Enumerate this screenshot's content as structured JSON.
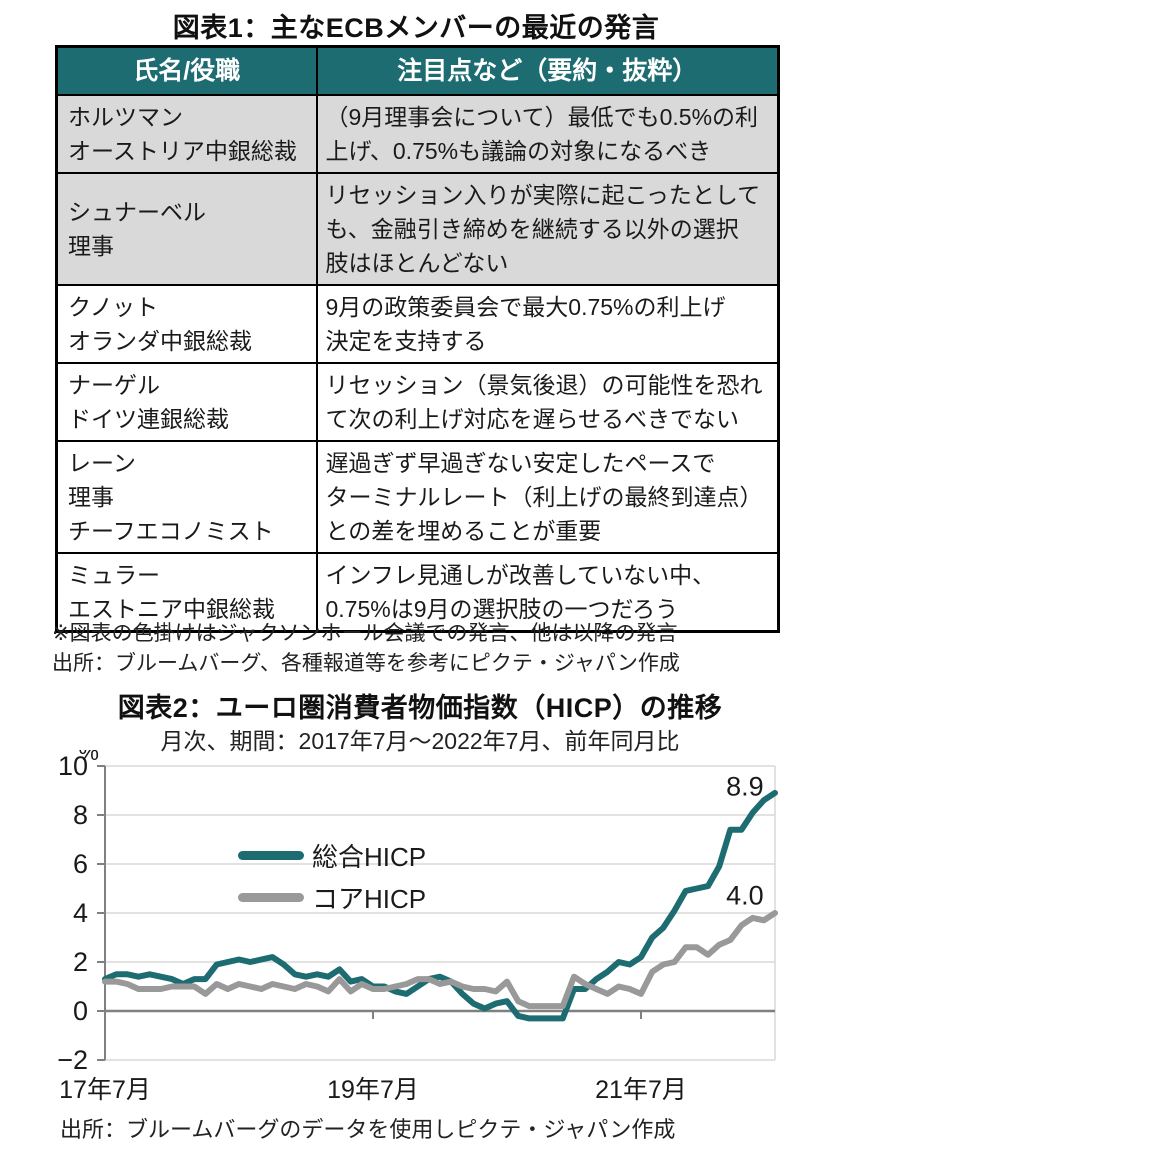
{
  "figure1": {
    "title": "図表1：主なECBメンバーの最近の発言",
    "columns": [
      "氏名/役職",
      "注目点など（要約・抜粋）"
    ],
    "rows": [
      {
        "name": "ホルツマン\nオーストリア中銀総裁",
        "comment": "（9月理事会について）最低でも0.5%の利\n上げ、0.75%も議論の対象になるべき",
        "highlighted": true
      },
      {
        "name": "シュナーベル\n理事",
        "comment": "リセッション入りが実際に起こったとして\nも、金融引き締めを継続する以外の選択\n肢はほとんどない",
        "highlighted": true
      },
      {
        "name": "クノット\nオランダ中銀総裁",
        "comment": "9月の政策委員会で最大0.75%の利上げ\n決定を支持する",
        "highlighted": false
      },
      {
        "name": "ナーゲル\nドイツ連銀総裁",
        "comment": "リセッション（景気後退）の可能性を恐れ\nて次の利上げ対応を遅らせるべきでない",
        "highlighted": false
      },
      {
        "name": "レーン\n理事\nチーフエコノミスト",
        "comment": "遅過ぎず早過ぎない安定したペースで\nターミナルレート（利上げの最終到達点）\nとの差を埋めることが重要",
        "highlighted": false
      },
      {
        "name": "ミュラー\nエストニア中銀総裁",
        "comment": "インフレ見通しが改善していない中、\n0.75%は9月の選択肢の一つだろう",
        "highlighted": false
      }
    ],
    "footnote": "※図表の色掛けはジャクソンホール会議での発言、他は以降の発言",
    "source": "出所：ブルームバーグ、各種報道等を参考にピクテ・ジャパン作成",
    "header_bg": "#1d6c71",
    "shade_color": "#d9d9d9"
  },
  "figure2": {
    "title": "図表2：ユーロ圏消費者物価指数（HICP）の推移",
    "subtitle": "月次、期間：2017年7月～2022年7月、前年同月比",
    "source": "出所：ブルームバーグのデータを使用しピクテ・ジャパン作成",
    "chart_data": {
      "type": "line",
      "unit_label": "%",
      "x_start": "2017年7月",
      "x_end": "2022年7月",
      "frequency": "monthly",
      "ylim": [
        -2,
        10
      ],
      "yticks": [
        10,
        8,
        6,
        4,
        2,
        0,
        -2
      ],
      "grid": true,
      "legend_position": "inside-upper-left",
      "xticks": [
        {
          "month_index": 0,
          "label": "17年7月"
        },
        {
          "month_index": 24,
          "label": "19年7月"
        },
        {
          "month_index": 48,
          "label": "21年7月"
        }
      ],
      "series": [
        {
          "name": "総合HICP",
          "color": "#1d6c71",
          "values": [
            1.3,
            1.5,
            1.5,
            1.4,
            1.5,
            1.4,
            1.3,
            1.1,
            1.3,
            1.3,
            1.9,
            2.0,
            2.1,
            2.0,
            2.1,
            2.2,
            1.9,
            1.5,
            1.4,
            1.5,
            1.4,
            1.7,
            1.2,
            1.3,
            1.0,
            1.0,
            0.8,
            0.7,
            1.0,
            1.3,
            1.4,
            1.2,
            0.7,
            0.3,
            0.1,
            0.3,
            0.4,
            -0.2,
            -0.3,
            -0.3,
            -0.3,
            -0.3,
            0.9,
            0.9,
            1.3,
            1.6,
            2.0,
            1.9,
            2.2,
            3.0,
            3.4,
            4.1,
            4.9,
            5.0,
            5.1,
            5.9,
            7.4,
            7.4,
            8.1,
            8.6,
            8.9
          ]
        },
        {
          "name": "コアHICP",
          "color": "#999999",
          "values": [
            1.2,
            1.2,
            1.1,
            0.9,
            0.9,
            0.9,
            1.0,
            1.0,
            1.0,
            0.7,
            1.1,
            0.9,
            1.1,
            1.0,
            0.9,
            1.1,
            1.0,
            0.9,
            1.1,
            1.0,
            0.8,
            1.3,
            0.8,
            1.1,
            0.9,
            0.9,
            1.0,
            1.1,
            1.3,
            1.3,
            1.1,
            1.2,
            1.0,
            0.9,
            0.9,
            0.8,
            1.2,
            0.4,
            0.2,
            0.2,
            0.2,
            0.2,
            1.4,
            1.1,
            0.9,
            0.7,
            1.0,
            0.9,
            0.7,
            1.6,
            1.9,
            2.0,
            2.6,
            2.6,
            2.3,
            2.7,
            2.9,
            3.5,
            3.8,
            3.7,
            4.0
          ]
        }
      ],
      "annotations": [
        {
          "text": "8.9",
          "month_index": 57.3,
          "value": 8.8
        },
        {
          "text": "4.0",
          "month_index": 57.3,
          "value": 4.35
        }
      ],
      "grid_color": "#d9d9d9",
      "axis_color": "#808080"
    }
  }
}
